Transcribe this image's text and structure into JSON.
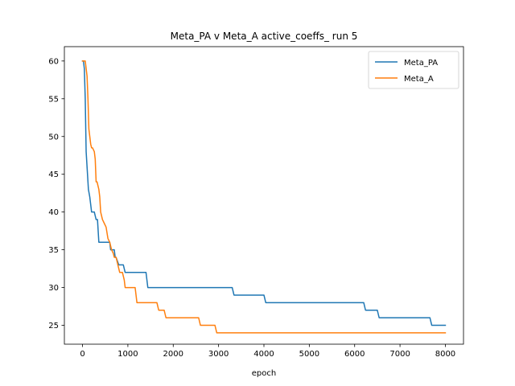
{
  "chart_data": {
    "type": "line",
    "title": "Meta_PA v Meta_A active_coeffs_ run 5",
    "xlabel": "epoch",
    "ylabel": "",
    "xlim": [
      -400,
      8400
    ],
    "ylim": [
      22.5,
      61.9
    ],
    "xticks": [
      0,
      1000,
      2000,
      3000,
      4000,
      5000,
      6000,
      7000,
      8000
    ],
    "yticks": [
      25,
      30,
      35,
      40,
      45,
      50,
      55,
      60
    ],
    "grid": false,
    "legend_position": "top-right",
    "series": [
      {
        "name": "Meta_PA",
        "color": "#1f77b4",
        "x": [
          0,
          20,
          40,
          60,
          80,
          100,
          130,
          160,
          200,
          260,
          300,
          330,
          360,
          380,
          560,
          600,
          620,
          660,
          700,
          720,
          740,
          800,
          880,
          900,
          940,
          1400,
          1440,
          3300,
          3340,
          4000,
          4040,
          6200,
          6240,
          6500,
          6540,
          7660,
          7700,
          8000
        ],
        "values": [
          60,
          60,
          59,
          55,
          48,
          46,
          43,
          42,
          40,
          40,
          39,
          39,
          36,
          36,
          36,
          36,
          35,
          35,
          35,
          34,
          34,
          33,
          33,
          33,
          32,
          32,
          30,
          30,
          29,
          29,
          28,
          28,
          27,
          27,
          26,
          26,
          25,
          25
        ]
      },
      {
        "name": "Meta_A",
        "color": "#ff7f0e",
        "x": [
          0,
          40,
          60,
          80,
          100,
          120,
          140,
          180,
          200,
          220,
          260,
          280,
          300,
          320,
          340,
          360,
          380,
          400,
          440,
          480,
          520,
          560,
          600,
          640,
          680,
          700,
          720,
          740,
          780,
          820,
          840,
          880,
          920,
          940,
          1000,
          1060,
          1100,
          1160,
          1180,
          1200,
          1220,
          1260,
          1300,
          1400,
          1460,
          1640,
          1680,
          1800,
          1840,
          2560,
          2600,
          2920,
          2960,
          8000
        ],
        "values": [
          60,
          60,
          60,
          59,
          58,
          55,
          51,
          49,
          48.5,
          48.5,
          48,
          47,
          44,
          44,
          43.5,
          43,
          42,
          40,
          39,
          38.5,
          38,
          36.5,
          36,
          35,
          34.5,
          34,
          34,
          34,
          33,
          32,
          32,
          32,
          31,
          30,
          30,
          30,
          30,
          30,
          29,
          28,
          28,
          28,
          28,
          28,
          28,
          28,
          27,
          27,
          26,
          26,
          25,
          25,
          24,
          24
        ]
      }
    ]
  }
}
